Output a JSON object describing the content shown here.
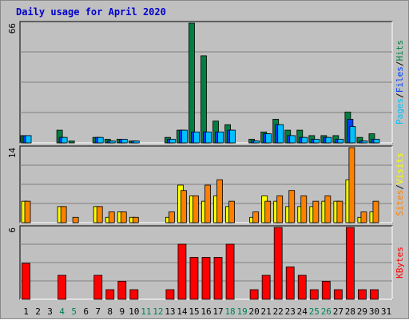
{
  "chart_data": {
    "type": "bar",
    "title": "Daily usage for April 2020",
    "days": [
      "1",
      "2",
      "3",
      "4",
      "5",
      "6",
      "7",
      "8",
      "9",
      "10",
      "11",
      "12",
      "13",
      "14",
      "15",
      "16",
      "17",
      "18",
      "19",
      "20",
      "21",
      "22",
      "23",
      "24",
      "25",
      "26",
      "27",
      "28",
      "29",
      "30",
      "31"
    ],
    "weekend_days": [
      "4",
      "5",
      "11",
      "12",
      "18",
      "19",
      "25",
      "26"
    ],
    "panels": [
      {
        "name": "hits-files-pages",
        "ymax_label": "66",
        "ymax": 66,
        "grid": true,
        "series": [
          {
            "name": "Hits",
            "color": "#008040",
            "values": [
              4,
              0,
              0,
              7,
              1,
              0,
              3,
              2,
              2,
              1,
              0,
              0,
              3,
              7,
              66,
              48,
              12,
              10,
              0,
              2,
              6,
              13,
              7,
              7,
              4,
              4,
              4,
              17,
              3,
              5,
              0
            ]
          },
          {
            "name": "Files",
            "color": "#0040ff",
            "values": [
              4,
              0,
              0,
              3,
              0,
              0,
              3,
              1,
              2,
              1,
              0,
              0,
              2,
              7,
              6,
              6,
              6,
              7,
              0,
              1,
              5,
              10,
              4,
              3,
              2,
              3,
              2,
              13,
              1,
              2,
              0
            ]
          },
          {
            "name": "Pages",
            "color": "#00c0ff",
            "values": [
              4,
              0,
              0,
              3,
              0,
              0,
              3,
              1,
              2,
              1,
              0,
              0,
              2,
              7,
              6,
              6,
              6,
              7,
              0,
              1,
              5,
              10,
              4,
              3,
              2,
              3,
              2,
              9,
              1,
              2,
              0
            ]
          }
        ],
        "axis_label_parts": [
          "Pages",
          "/",
          "Files",
          "/",
          "Hits"
        ]
      },
      {
        "name": "visits-sites",
        "ymax_label": "14",
        "ymax": 14,
        "grid": true,
        "series": [
          {
            "name": "Visits",
            "color": "#ffff00",
            "values": [
              4,
              0,
              0,
              3,
              0,
              0,
              3,
              1,
              2,
              1,
              0,
              0,
              1,
              7,
              5,
              4,
              5,
              3,
              0,
              1,
              5,
              4,
              3,
              3,
              3,
              4,
              4,
              8,
              1,
              2,
              0
            ]
          },
          {
            "name": "Sites",
            "color": "#ff8000",
            "values": [
              4,
              0,
              0,
              3,
              1,
              0,
              3,
              2,
              2,
              1,
              0,
              0,
              2,
              6,
              5,
              7,
              8,
              4,
              0,
              2,
              4,
              5,
              6,
              5,
              4,
              5,
              4,
              14,
              2,
              4,
              0
            ]
          }
        ],
        "axis_label_parts": [
          "Sites",
          "/",
          "Visits"
        ]
      },
      {
        "name": "kbytes",
        "ymax_label": "6",
        "ymax": 6,
        "grid": true,
        "series": [
          {
            "name": "KBytes",
            "color": "#ff0000",
            "values": [
              3,
              0,
              0,
              2,
              0,
              0,
              2,
              0.8,
              1.5,
              0.8,
              0,
              0,
              0.8,
              4.6,
              3.5,
              3.5,
              3.5,
              4.6,
              0,
              0.8,
              2,
              6,
              2.7,
              2,
              0.8,
              1.5,
              0.8,
              6,
              0.8,
              0.8,
              0
            ]
          }
        ],
        "axis_label_parts": [
          "KBytes"
        ]
      }
    ],
    "colors": {
      "weekday_label": "#000000",
      "weekend_label": "#00805c",
      "title": "#0000cc",
      "slash": "#000000"
    }
  }
}
